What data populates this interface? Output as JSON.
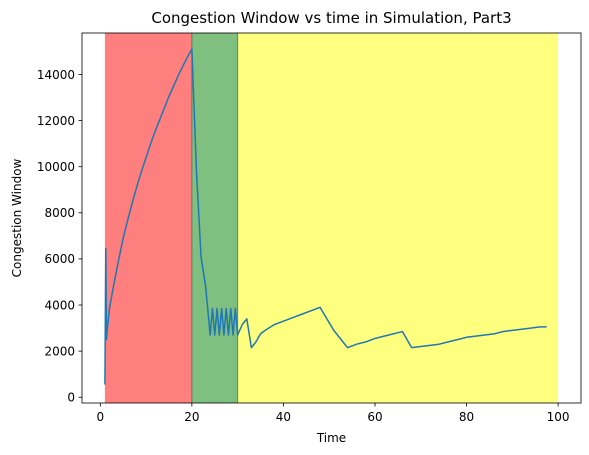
{
  "chart_data": {
    "type": "line",
    "title": "Congestion Window vs time in Simulation, Part3",
    "xlabel": "Time",
    "ylabel": "Congestion Window",
    "xlim": [
      -4,
      105
    ],
    "ylim": [
      -250,
      15800
    ],
    "xticks": [
      0,
      20,
      40,
      60,
      80,
      100
    ],
    "xtick_labels": [
      "0",
      "20",
      "40",
      "60",
      "80",
      "100"
    ],
    "yticks": [
      0,
      2000,
      4000,
      6000,
      8000,
      10000,
      12000,
      14000
    ],
    "ytick_labels": [
      "0",
      "2000",
      "4000",
      "6000",
      "8000",
      "10000",
      "12000",
      "14000"
    ],
    "grid": false,
    "bands": [
      {
        "from": 1,
        "to": 20,
        "color": "#ff0000",
        "opacity": 0.5
      },
      {
        "from": 20,
        "to": 30,
        "color": "#008000",
        "opacity": 0.5
      },
      {
        "from": 30,
        "to": 100,
        "color": "#ffff00",
        "opacity": 0.5
      }
    ],
    "band_edges": [
      20,
      30
    ],
    "series": [
      {
        "color": "#1f77b4",
        "x": [
          1.0,
          1.2,
          1.35,
          1.5,
          2,
          3,
          4,
          5,
          6,
          7,
          8,
          9,
          10,
          11,
          12,
          13,
          14,
          15,
          16,
          17,
          18,
          19,
          20,
          21,
          22,
          23,
          24,
          24.5,
          25,
          25.5,
          26,
          26.5,
          27,
          27.5,
          28,
          28.5,
          29,
          29.5,
          30,
          31,
          32,
          33,
          34,
          35,
          36,
          38,
          40,
          42,
          44,
          46,
          48,
          51,
          54,
          56,
          58,
          60,
          62,
          64,
          66,
          68,
          70,
          72,
          74,
          76,
          78,
          80,
          82,
          84,
          86,
          88,
          90,
          92,
          94,
          96,
          97.5
        ],
        "y": [
          550,
          6450,
          2500,
          2900,
          3850,
          4950,
          5950,
          6900,
          7700,
          8450,
          9150,
          9800,
          10400,
          11000,
          11550,
          12050,
          12550,
          13050,
          13500,
          13950,
          14350,
          14750,
          15100,
          9800,
          6100,
          4800,
          2700,
          3850,
          2700,
          3850,
          2700,
          3850,
          2700,
          3850,
          2700,
          3850,
          2700,
          3850,
          2700,
          3150,
          3400,
          2150,
          2400,
          2750,
          2900,
          3150,
          3300,
          3450,
          3600,
          3750,
          3900,
          2900,
          2150,
          2300,
          2400,
          2550,
          2650,
          2750,
          2850,
          2150,
          2200,
          2250,
          2300,
          2400,
          2500,
          2600,
          2650,
          2700,
          2750,
          2850,
          2900,
          2950,
          3000,
          3050,
          3050
        ]
      }
    ]
  }
}
